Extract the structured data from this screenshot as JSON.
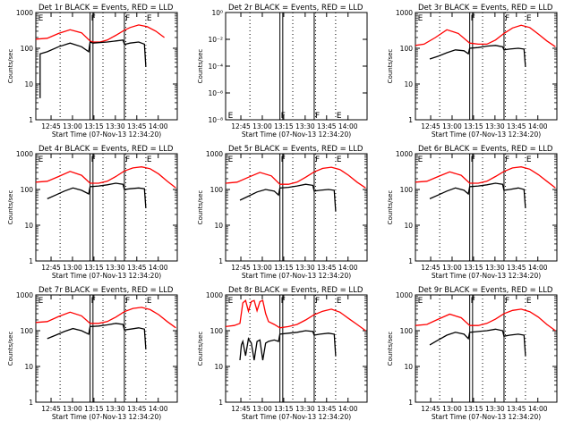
{
  "figure": {
    "xlabel": "Start Time (07-Nov-13 12:34:20)",
    "ylabel": "Counts/sec",
    "x_ticks": [
      "12:45",
      "13:00",
      "13:15",
      "13:30",
      "13:45",
      "14:00"
    ],
    "x_tick_minutes": [
      10.67,
      25.67,
      40.67,
      55.67,
      70.67,
      85.67
    ],
    "x_range_minutes": [
      0,
      99
    ],
    "y_ticks_std": [
      "1",
      "10",
      "100",
      "1000"
    ],
    "y_ticks_det2": [
      "10⁰",
      "10⁻²",
      "10⁻⁴",
      "10⁻⁶",
      "10⁻⁸"
    ],
    "colors": {
      "events": "#000000",
      "lld": "#ff0000",
      "axes": "#000000",
      "background": "#ffffff"
    },
    "flag_markers": {
      "F": "F",
      "E": "E"
    }
  },
  "chart_data": [
    {
      "type": "line",
      "title": "Det 1r BLACK = Events, RED = LLD",
      "yscale": "log",
      "ylim": [
        1,
        1000
      ],
      "xlim_minutes": [
        0,
        99
      ],
      "dotted_lines_minutes": [
        17,
        47,
        63,
        77
      ],
      "solid_lines_minutes": [
        38,
        40,
        62
      ],
      "flags": [
        {
          "label": "E",
          "x": 1
        },
        {
          "label": "F",
          "x": 38
        },
        {
          "label": "F",
          "x": 62
        },
        {
          "label": "E",
          "x": 77
        }
      ],
      "series": [
        {
          "name": "LLD",
          "color": "#ff0000",
          "x": [
            0,
            8,
            16,
            24,
            32,
            38,
            40,
            45,
            50,
            56,
            62,
            66,
            72,
            78,
            84,
            90
          ],
          "y": [
            180,
            190,
            260,
            330,
            270,
            160,
            150,
            150,
            170,
            230,
            320,
            380,
            450,
            400,
            300,
            200
          ]
        },
        {
          "name": "Events",
          "color": "#000000",
          "x": [
            3,
            3,
            8,
            16,
            24,
            32,
            37,
            38,
            40,
            50,
            56,
            61,
            62,
            63,
            66,
            72,
            76,
            77
          ],
          "y": [
            4,
            70,
            80,
            110,
            140,
            110,
            80,
            150,
            140,
            150,
            160,
            170,
            130,
            130,
            140,
            150,
            130,
            30
          ]
        }
      ]
    },
    {
      "type": "line",
      "title": "Det 2r BLACK = Events, RED = LLD",
      "yscale": "log",
      "ylim": [
        1e-08,
        1
      ],
      "xlim_minutes": [
        0,
        99
      ],
      "y_tick_values": [
        1,
        0.01,
        0.0001,
        1e-06,
        1e-08
      ],
      "dotted_lines_minutes": [
        17,
        47,
        63,
        77
      ],
      "solid_lines_minutes": [
        38,
        40,
        62
      ],
      "flags": [
        {
          "label": "E",
          "x": 1
        },
        {
          "label": "F",
          "x": 38
        },
        {
          "label": "F",
          "x": 62
        },
        {
          "label": "E",
          "x": 77
        }
      ],
      "series": []
    },
    {
      "type": "line",
      "title": "Det 3r BLACK = Events, RED = LLD",
      "yscale": "log",
      "ylim": [
        1,
        1000
      ],
      "xlim_minutes": [
        0,
        99
      ],
      "dotted_lines_minutes": [
        17,
        47,
        63,
        77
      ],
      "solid_lines_minutes": [
        38,
        40,
        62
      ],
      "flags": [
        {
          "label": "E",
          "x": 1
        },
        {
          "label": "F",
          "x": 38
        },
        {
          "label": "F",
          "x": 62
        },
        {
          "label": "E",
          "x": 77
        }
      ],
      "series": [
        {
          "name": "LLD",
          "color": "#ff0000",
          "x": [
            0,
            6,
            14,
            22,
            30,
            38,
            44,
            50,
            56,
            62,
            68,
            74,
            80,
            86,
            92,
            98
          ],
          "y": [
            120,
            130,
            200,
            330,
            260,
            140,
            130,
            130,
            170,
            260,
            370,
            440,
            380,
            250,
            160,
            110
          ]
        },
        {
          "name": "Events",
          "color": "#000000",
          "x": [
            10,
            16,
            22,
            28,
            34,
            37,
            38,
            44,
            50,
            56,
            61,
            62,
            66,
            72,
            76,
            77
          ],
          "y": [
            50,
            60,
            75,
            90,
            85,
            70,
            100,
            105,
            115,
            120,
            110,
            90,
            95,
            100,
            95,
            30
          ]
        }
      ]
    },
    {
      "type": "line",
      "title": "Det 4r BLACK = Events, RED = LLD",
      "yscale": "log",
      "ylim": [
        1,
        1000
      ],
      "xlim_minutes": [
        0,
        99
      ],
      "dotted_lines_minutes": [
        17,
        47,
        63,
        77
      ],
      "solid_lines_minutes": [
        38,
        40,
        62
      ],
      "flags": [
        {
          "label": "E",
          "x": 1
        },
        {
          "label": "F",
          "x": 38
        },
        {
          "label": "F",
          "x": 62
        },
        {
          "label": "E",
          "x": 77
        }
      ],
      "series": [
        {
          "name": "LLD",
          "color": "#ff0000",
          "x": [
            0,
            8,
            16,
            24,
            32,
            38,
            44,
            50,
            56,
            62,
            68,
            74,
            80,
            86,
            92,
            98
          ],
          "y": [
            160,
            170,
            230,
            320,
            250,
            150,
            150,
            170,
            230,
            330,
            400,
            430,
            380,
            270,
            170,
            110
          ]
        },
        {
          "name": "Events",
          "color": "#000000",
          "x": [
            8,
            14,
            20,
            26,
            32,
            37,
            38,
            44,
            50,
            56,
            61,
            62,
            66,
            72,
            76,
            77
          ],
          "y": [
            55,
            70,
            90,
            110,
            95,
            75,
            120,
            125,
            135,
            150,
            140,
            100,
            105,
            110,
            105,
            30
          ]
        }
      ]
    },
    {
      "type": "line",
      "title": "Det 5r BLACK = Events, RED = LLD",
      "yscale": "log",
      "ylim": [
        1,
        1000
      ],
      "xlim_minutes": [
        0,
        99
      ],
      "dotted_lines_minutes": [
        17,
        47,
        63,
        77
      ],
      "solid_lines_minutes": [
        38,
        40,
        62
      ],
      "flags": [
        {
          "label": "E",
          "x": 1
        },
        {
          "label": "F",
          "x": 38
        },
        {
          "label": "F",
          "x": 62
        },
        {
          "label": "E",
          "x": 77
        }
      ],
      "series": [
        {
          "name": "LLD",
          "color": "#ff0000",
          "x": [
            0,
            8,
            16,
            24,
            32,
            38,
            44,
            50,
            56,
            62,
            68,
            74,
            80,
            86,
            92,
            98
          ],
          "y": [
            150,
            160,
            220,
            300,
            240,
            140,
            140,
            160,
            220,
            310,
            390,
            420,
            360,
            250,
            160,
            110
          ]
        },
        {
          "name": "Events",
          "color": "#000000",
          "x": [
            10,
            16,
            22,
            28,
            34,
            37,
            38,
            44,
            50,
            56,
            61,
            62,
            66,
            72,
            76,
            77
          ],
          "y": [
            50,
            65,
            85,
            100,
            90,
            70,
            110,
            115,
            125,
            140,
            130,
            90,
            95,
            100,
            95,
            25
          ]
        }
      ]
    },
    {
      "type": "line",
      "title": "Det 6r BLACK = Events, RED = LLD",
      "yscale": "log",
      "ylim": [
        1,
        1000
      ],
      "xlim_minutes": [
        0,
        99
      ],
      "dotted_lines_minutes": [
        17,
        47,
        63,
        77
      ],
      "solid_lines_minutes": [
        38,
        40,
        62
      ],
      "flags": [
        {
          "label": "E",
          "x": 1
        },
        {
          "label": "F",
          "x": 38
        },
        {
          "label": "F",
          "x": 62
        },
        {
          "label": "E",
          "x": 77
        }
      ],
      "series": [
        {
          "name": "LLD",
          "color": "#ff0000",
          "x": [
            0,
            8,
            16,
            24,
            32,
            38,
            44,
            50,
            56,
            62,
            68,
            74,
            80,
            86,
            92,
            98
          ],
          "y": [
            160,
            170,
            230,
            310,
            250,
            150,
            150,
            170,
            230,
            320,
            400,
            430,
            370,
            260,
            170,
            110
          ]
        },
        {
          "name": "Events",
          "color": "#000000",
          "x": [
            10,
            16,
            22,
            28,
            34,
            37,
            38,
            44,
            50,
            56,
            61,
            62,
            66,
            72,
            76,
            77
          ],
          "y": [
            55,
            70,
            90,
            110,
            95,
            75,
            120,
            125,
            135,
            150,
            140,
            95,
            100,
            110,
            100,
            30
          ]
        }
      ]
    },
    {
      "type": "line",
      "title": "Det 7r BLACK = Events, RED = LLD",
      "yscale": "log",
      "ylim": [
        1,
        1000
      ],
      "xlim_minutes": [
        0,
        99
      ],
      "dotted_lines_minutes": [
        17,
        47,
        63,
        77
      ],
      "solid_lines_minutes": [
        38,
        40,
        62
      ],
      "flags": [
        {
          "label": "E",
          "x": 1
        },
        {
          "label": "F",
          "x": 38
        },
        {
          "label": "F",
          "x": 62
        },
        {
          "label": "E",
          "x": 77
        }
      ],
      "series": [
        {
          "name": "LLD",
          "color": "#ff0000",
          "x": [
            0,
            8,
            16,
            24,
            32,
            38,
            44,
            50,
            56,
            62,
            68,
            74,
            80,
            86,
            92,
            98
          ],
          "y": [
            170,
            180,
            250,
            330,
            260,
            160,
            160,
            180,
            240,
            340,
            420,
            450,
            390,
            280,
            180,
            120
          ]
        },
        {
          "name": "Events",
          "color": "#000000",
          "x": [
            8,
            14,
            20,
            26,
            32,
            37,
            38,
            44,
            50,
            56,
            61,
            62,
            66,
            72,
            76,
            77
          ],
          "y": [
            60,
            75,
            95,
            115,
            100,
            80,
            130,
            135,
            145,
            160,
            150,
            105,
            110,
            120,
            110,
            30
          ]
        }
      ]
    },
    {
      "type": "line",
      "title": "Det 8r BLACK = Events, RED = LLD",
      "yscale": "log",
      "ylim": [
        1,
        1000
      ],
      "xlim_minutes": [
        0,
        99
      ],
      "dotted_lines_minutes": [
        17,
        47,
        63,
        77
      ],
      "solid_lines_minutes": [
        38,
        40,
        62
      ],
      "flags": [
        {
          "label": "E",
          "x": 1
        },
        {
          "label": "F",
          "x": 38
        },
        {
          "label": "F",
          "x": 62
        },
        {
          "label": "E",
          "x": 77
        }
      ],
      "series": [
        {
          "name": "LLD",
          "color": "#ff0000",
          "x": [
            0,
            6,
            10,
            12,
            14,
            16,
            18,
            20,
            22,
            24,
            26,
            28,
            30,
            34,
            38,
            44,
            50,
            56,
            62,
            68,
            74,
            80,
            86,
            92,
            98
          ],
          "y": [
            130,
            140,
            160,
            600,
            700,
            350,
            650,
            700,
            360,
            650,
            700,
            300,
            180,
            150,
            120,
            130,
            150,
            200,
            280,
            350,
            400,
            330,
            220,
            150,
            100
          ]
        },
        {
          "name": "Events",
          "color": "#000000",
          "x": [
            10,
            11,
            12,
            14,
            16,
            18,
            20,
            22,
            24,
            26,
            28,
            30,
            34,
            37,
            38,
            44,
            50,
            56,
            61,
            62,
            66,
            72,
            76,
            77
          ],
          "y": [
            15,
            40,
            50,
            20,
            60,
            45,
            15,
            50,
            55,
            15,
            45,
            50,
            55,
            50,
            80,
            85,
            90,
            100,
            95,
            75,
            80,
            85,
            80,
            20
          ]
        }
      ]
    },
    {
      "type": "line",
      "title": "Det 9r BLACK = Events, RED = LLD",
      "yscale": "log",
      "ylim": [
        1,
        1000
      ],
      "xlim_minutes": [
        0,
        99
      ],
      "dotted_lines_minutes": [
        17,
        47,
        63,
        77
      ],
      "solid_lines_minutes": [
        38,
        40,
        62
      ],
      "flags": [
        {
          "label": "E",
          "x": 1
        },
        {
          "label": "F",
          "x": 38
        },
        {
          "label": "F",
          "x": 62
        },
        {
          "label": "E",
          "x": 77
        }
      ],
      "series": [
        {
          "name": "LLD",
          "color": "#ff0000",
          "x": [
            0,
            8,
            16,
            24,
            32,
            38,
            44,
            50,
            56,
            62,
            68,
            74,
            80,
            86,
            92,
            98
          ],
          "y": [
            140,
            150,
            210,
            290,
            230,
            140,
            140,
            160,
            210,
            300,
            370,
            400,
            340,
            240,
            150,
            100
          ]
        },
        {
          "name": "Events",
          "color": "#000000",
          "x": [
            10,
            16,
            22,
            28,
            34,
            37,
            38,
            44,
            50,
            56,
            61,
            62,
            66,
            72,
            76,
            77
          ],
          "y": [
            40,
            55,
            75,
            90,
            80,
            60,
            90,
            95,
            100,
            110,
            100,
            70,
            75,
            80,
            75,
            20
          ]
        }
      ]
    }
  ]
}
